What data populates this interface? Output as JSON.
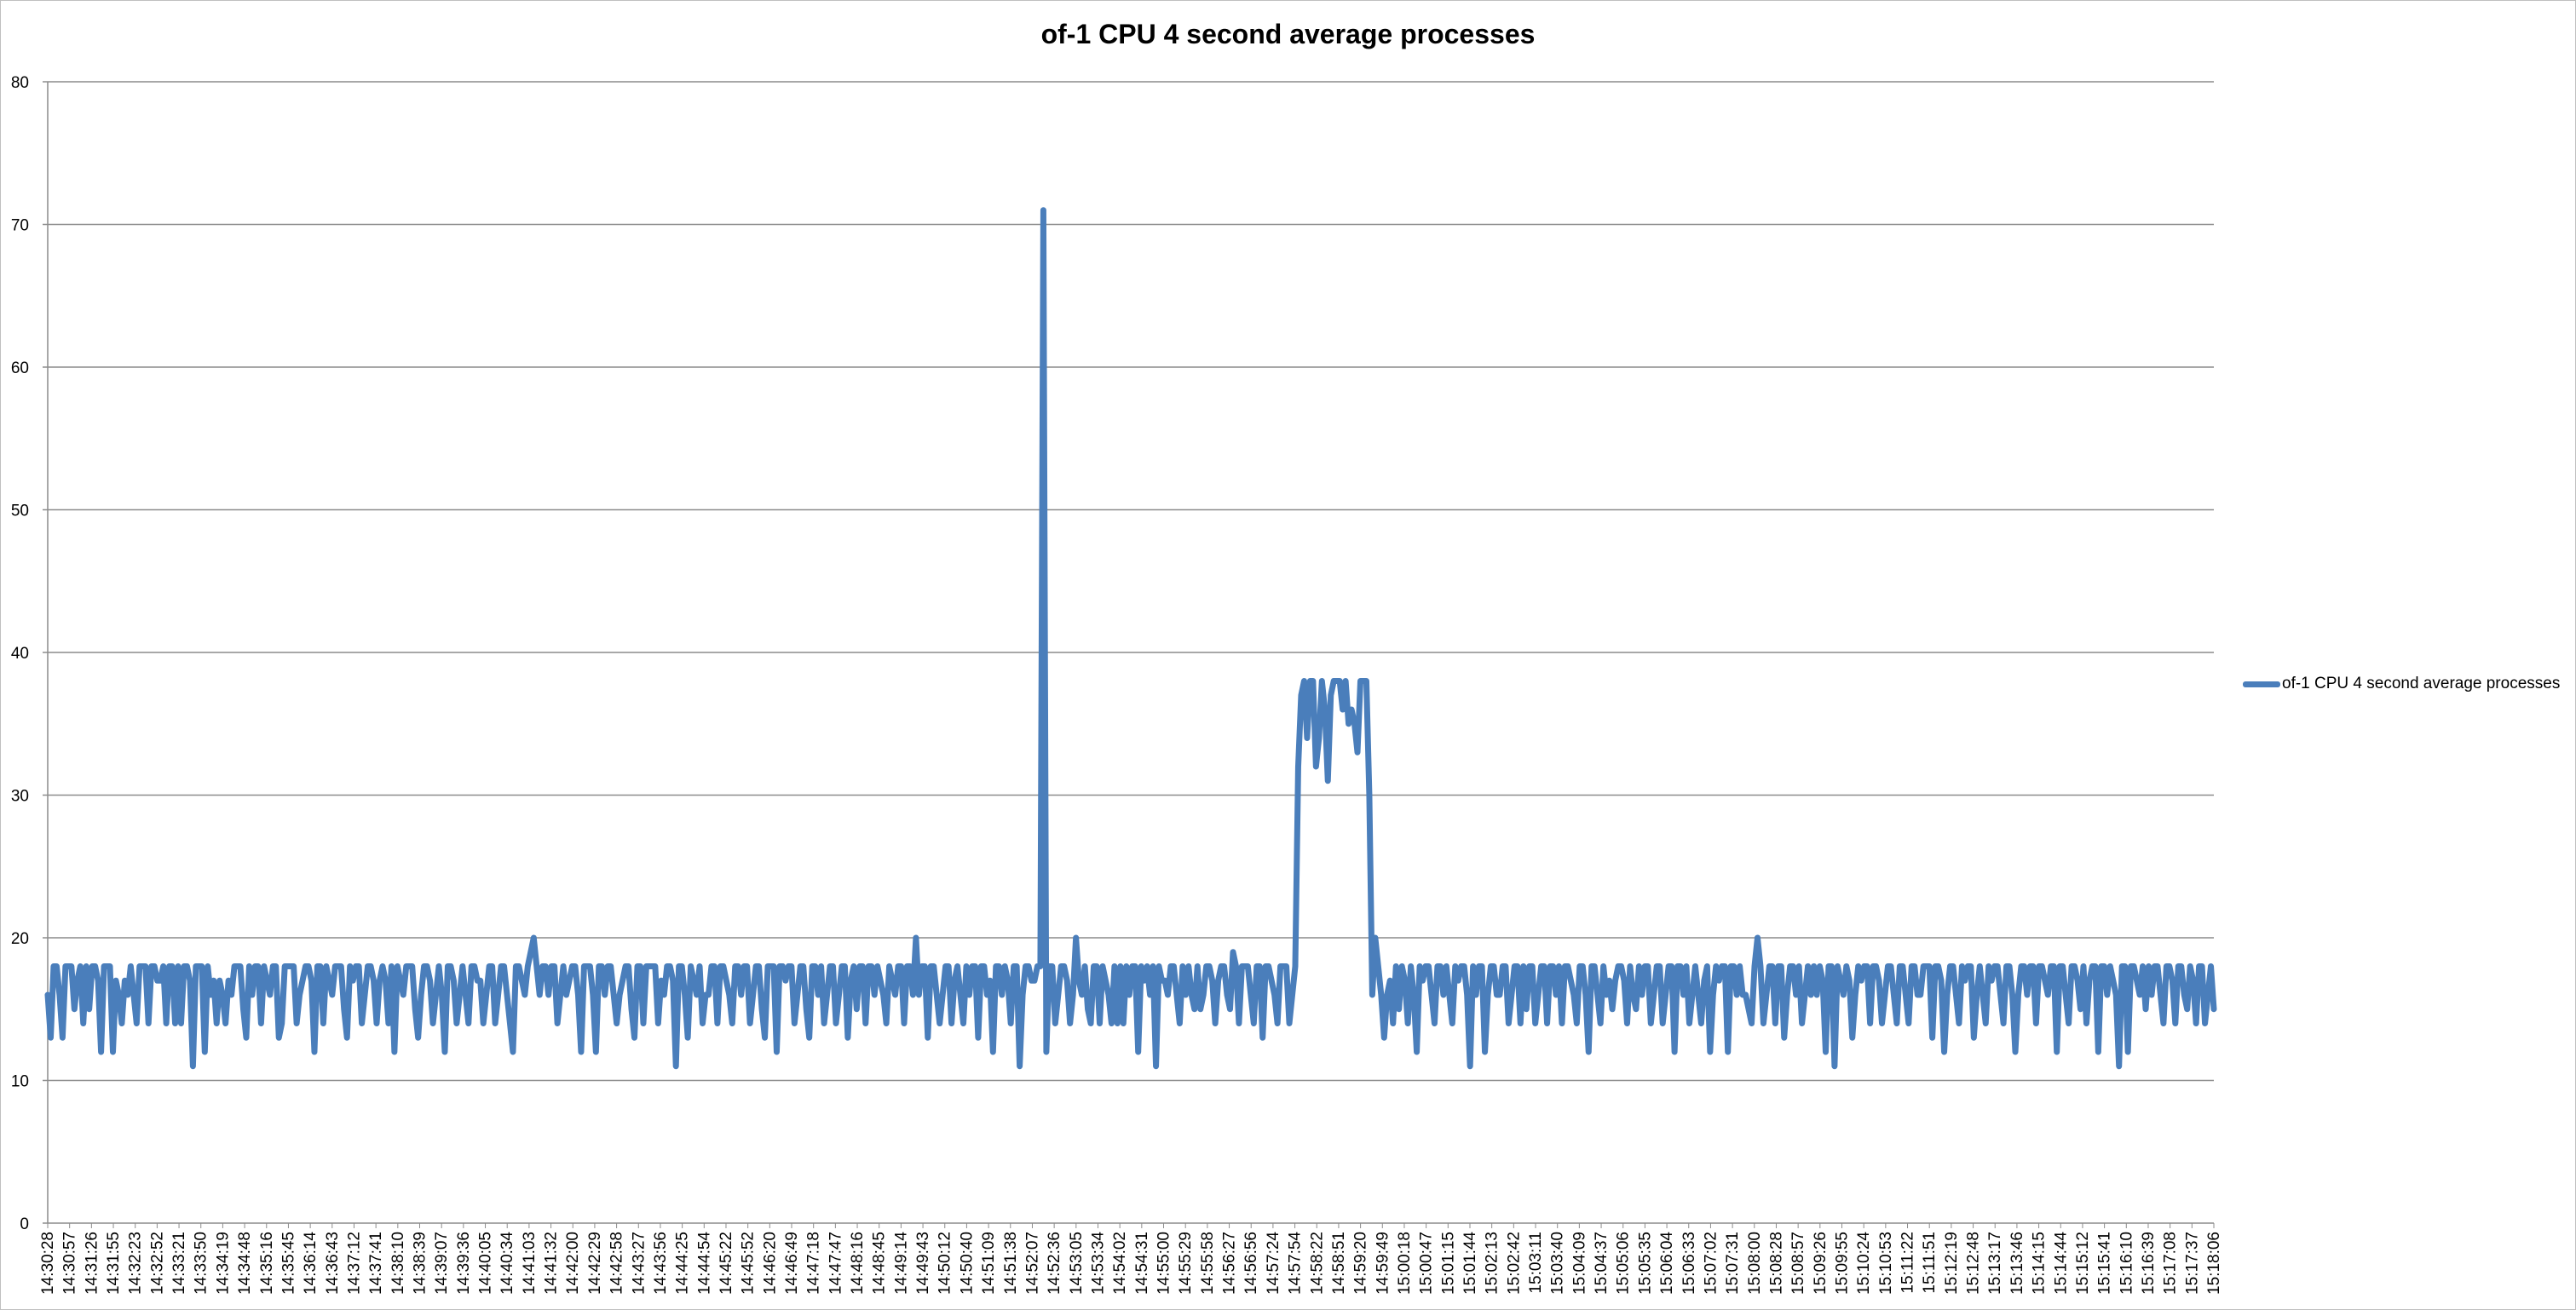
{
  "chart_data": {
    "type": "line",
    "title": "of-1 CPU 4 second average processes",
    "xlabel": "",
    "ylabel": "",
    "ylim": [
      0,
      80
    ],
    "y_ticks": [
      0,
      10,
      20,
      30,
      40,
      50,
      60,
      70,
      80
    ],
    "grid": "horizontal major gridlines",
    "legend": "right",
    "series_color": "#4a7ebb",
    "x_tick_labels": [
      "14:30:28",
      "14:30:57",
      "14:31:26",
      "14:31:55",
      "14:32:23",
      "14:32:52",
      "14:33:21",
      "14:33:50",
      "14:34:19",
      "14:34:48",
      "14:35:16",
      "14:35:45",
      "14:36:14",
      "14:36:43",
      "14:37:12",
      "14:37:41",
      "14:38:10",
      "14:38:39",
      "14:39:07",
      "14:39:36",
      "14:40:05",
      "14:40:34",
      "14:41:03",
      "14:41:32",
      "14:42:00",
      "14:42:29",
      "14:42:58",
      "14:43:27",
      "14:43:56",
      "14:44:25",
      "14:44:54",
      "14:45:22",
      "14:45:52",
      "14:46:20",
      "14:46:49",
      "14:47:18",
      "14:47:47",
      "14:48:16",
      "14:48:45",
      "14:49:14",
      "14:49:43",
      "14:50:12",
      "14:50:40",
      "14:51:09",
      "14:51:38",
      "14:52:07",
      "14:52:36",
      "14:53:05",
      "14:53:34",
      "14:54:02",
      "14:54:31",
      "14:55:00",
      "14:55:29",
      "14:55:58",
      "14:56:27",
      "14:56:56",
      "14:57:24",
      "14:57:54",
      "14:58:22",
      "14:58:51",
      "14:59:20",
      "14:59:49",
      "15:00:18",
      "15:00:47",
      "15:01:15",
      "15:01:44",
      "15:02:13",
      "15:02:42",
      "15:03:11",
      "15:03:40",
      "15:04:09",
      "15:04:37",
      "15:05:06",
      "15:05:35",
      "15:06:04",
      "15:06:33",
      "15:07:02",
      "15:07:31",
      "15:08:00",
      "15:08:28",
      "15:08:57",
      "15:09:26",
      "15:09:55",
      "15:10:24",
      "15:10:53",
      "15:11:22",
      "15:11:51",
      "15:12:19",
      "15:12:48",
      "15:13:17",
      "15:13:46",
      "15:14:15",
      "15:14:44",
      "15:15:12",
      "15:15:41",
      "15:16:10",
      "15:16:39",
      "15:17:08",
      "15:17:37",
      "15:18:06"
    ],
    "series": [
      {
        "name": "of-1 CPU 4 second average processes",
        "values": [
          16,
          13,
          18,
          18,
          16,
          13,
          18,
          18,
          18,
          15,
          17,
          18,
          14,
          18,
          15,
          18,
          18,
          17,
          12,
          18,
          18,
          18,
          12,
          17,
          16,
          14,
          17,
          16,
          18,
          16,
          14,
          18,
          18,
          18,
          14,
          18,
          18,
          17,
          17,
          18,
          14,
          18,
          18,
          14,
          18,
          14,
          18,
          18,
          17,
          11,
          18,
          18,
          18,
          12,
          18,
          16,
          17,
          14,
          17,
          16,
          14,
          17,
          16,
          18,
          18,
          18,
          15,
          13,
          18,
          16,
          18,
          18,
          14,
          18,
          17,
          16,
          18,
          18,
          13,
          14,
          18,
          18,
          18,
          18,
          14,
          16,
          17,
          18,
          18,
          17,
          12,
          18,
          18,
          14,
          18,
          17,
          16,
          18,
          18,
          18,
          15,
          13,
          18,
          17,
          18,
          18,
          14,
          16,
          18,
          18,
          17,
          14,
          17,
          18,
          17,
          14,
          18,
          12,
          18,
          17,
          16,
          18,
          18,
          18,
          15,
          13,
          16,
          18,
          18,
          17,
          14,
          16,
          18,
          16,
          12,
          18,
          18,
          17,
          14,
          16,
          18,
          16,
          14,
          18,
          18,
          17,
          17,
          14,
          16,
          18,
          18,
          14,
          16,
          18,
          18,
          16,
          14,
          12,
          18,
          18,
          17,
          16,
          18,
          19,
          20,
          18,
          16,
          18,
          18,
          16,
          18,
          18,
          14,
          16,
          18,
          16,
          17,
          18,
          18,
          16,
          12,
          18,
          18,
          18,
          16,
          12,
          18,
          18,
          16,
          18,
          18,
          16,
          14,
          16,
          17,
          18,
          18,
          15,
          13,
          18,
          18,
          14,
          18,
          18,
          18,
          18,
          14,
          17,
          16,
          18,
          18,
          17,
          11,
          18,
          18,
          16,
          13,
          18,
          17,
          16,
          18,
          14,
          16,
          16,
          18,
          18,
          14,
          18,
          18,
          17,
          16,
          14,
          18,
          18,
          16,
          18,
          18,
          14,
          16,
          18,
          18,
          15,
          13,
          18,
          18,
          18,
          12,
          18,
          18,
          17,
          18,
          18,
          14,
          16,
          18,
          18,
          15,
          13,
          18,
          18,
          16,
          18,
          14,
          16,
          18,
          18,
          14,
          16,
          18,
          18,
          13,
          17,
          18,
          15,
          18,
          18,
          14,
          18,
          18,
          16,
          18,
          17,
          16,
          14,
          18,
          17,
          16,
          18,
          18,
          14,
          18,
          18,
          16,
          20,
          16,
          18,
          18,
          13,
          18,
          18,
          16,
          14,
          16,
          18,
          18,
          14,
          17,
          18,
          16,
          14,
          18,
          16,
          18,
          18,
          13,
          18,
          18,
          16,
          17,
          12,
          18,
          18,
          16,
          18,
          17,
          14,
          18,
          18,
          11,
          16,
          18,
          18,
          17,
          17,
          18,
          18,
          71,
          12,
          18,
          18,
          14,
          16,
          18,
          18,
          17,
          14,
          16,
          20,
          17,
          16,
          18,
          15,
          14,
          18,
          18,
          14,
          18,
          17,
          16,
          14,
          18,
          14,
          18,
          14,
          18,
          16,
          18,
          18,
          12,
          18,
          17,
          18,
          16,
          18,
          11,
          18,
          17,
          17,
          16,
          18,
          18,
          16,
          14,
          18,
          16,
          18,
          16,
          15,
          18,
          15,
          16,
          18,
          18,
          17,
          14,
          17,
          18,
          18,
          16,
          15,
          19,
          18,
          14,
          18,
          18,
          18,
          16,
          14,
          18,
          18,
          13,
          18,
          18,
          17,
          16,
          14,
          18,
          18,
          18,
          14,
          16,
          18,
          32,
          37,
          38,
          34,
          38,
          38,
          32,
          34,
          38,
          36,
          31,
          37,
          38,
          38,
          38,
          36,
          38,
          35,
          36,
          35,
          33,
          38,
          38,
          38,
          30,
          16,
          20,
          18,
          16,
          13,
          16,
          17,
          14,
          18,
          15,
          18,
          17,
          14,
          18,
          16,
          12,
          18,
          17,
          18,
          18,
          16,
          14,
          18,
          18,
          16,
          18,
          16,
          14,
          18,
          17,
          18,
          18,
          16,
          11,
          18,
          16,
          18,
          18,
          12,
          16,
          18,
          18,
          16,
          16,
          18,
          18,
          14,
          16,
          18,
          18,
          14,
          18,
          15,
          18,
          18,
          14,
          16,
          18,
          18,
          14,
          18,
          18,
          16,
          18,
          14,
          18,
          18,
          17,
          16,
          14,
          18,
          18,
          16,
          12,
          18,
          18,
          16,
          14,
          18,
          16,
          17,
          15,
          17,
          18,
          18,
          17,
          14,
          18,
          16,
          15,
          18,
          16,
          18,
          18,
          14,
          16,
          18,
          18,
          14,
          16,
          18,
          18,
          12,
          18,
          18,
          16,
          18,
          14,
          16,
          18,
          16,
          14,
          17,
          18,
          12,
          16,
          18,
          17,
          18,
          18,
          12,
          18,
          18,
          16,
          18,
          16,
          16,
          15,
          14,
          18,
          20,
          18,
          14,
          16,
          18,
          18,
          14,
          18,
          18,
          13,
          16,
          18,
          18,
          16,
          18,
          14,
          16,
          18,
          16,
          18,
          16,
          18,
          17,
          12,
          18,
          18,
          11,
          18,
          17,
          16,
          18,
          17,
          13,
          16,
          18,
          17,
          18,
          18,
          14,
          18,
          18,
          17,
          14,
          16,
          18,
          18,
          16,
          14,
          18,
          18,
          16,
          14,
          18,
          18,
          16,
          16,
          18,
          18,
          18,
          13,
          18,
          18,
          17,
          12,
          16,
          18,
          18,
          16,
          14,
          18,
          17,
          18,
          18,
          13,
          16,
          18,
          16,
          14,
          18,
          17,
          18,
          18,
          16,
          14,
          18,
          18,
          16,
          12,
          16,
          18,
          18,
          16,
          18,
          18,
          14,
          18,
          18,
          17,
          16,
          18,
          18,
          12,
          18,
          18,
          16,
          14,
          18,
          18,
          17,
          15,
          18,
          14,
          17,
          18,
          18,
          12,
          18,
          18,
          16,
          18,
          17,
          16,
          11,
          18,
          18,
          12,
          18,
          18,
          17,
          16,
          18,
          15,
          18,
          16,
          18,
          18,
          16,
          14,
          18,
          18,
          17,
          14,
          18,
          18,
          16,
          15,
          18,
          17,
          14,
          18,
          18,
          14,
          16,
          18,
          15
        ]
      }
    ]
  }
}
